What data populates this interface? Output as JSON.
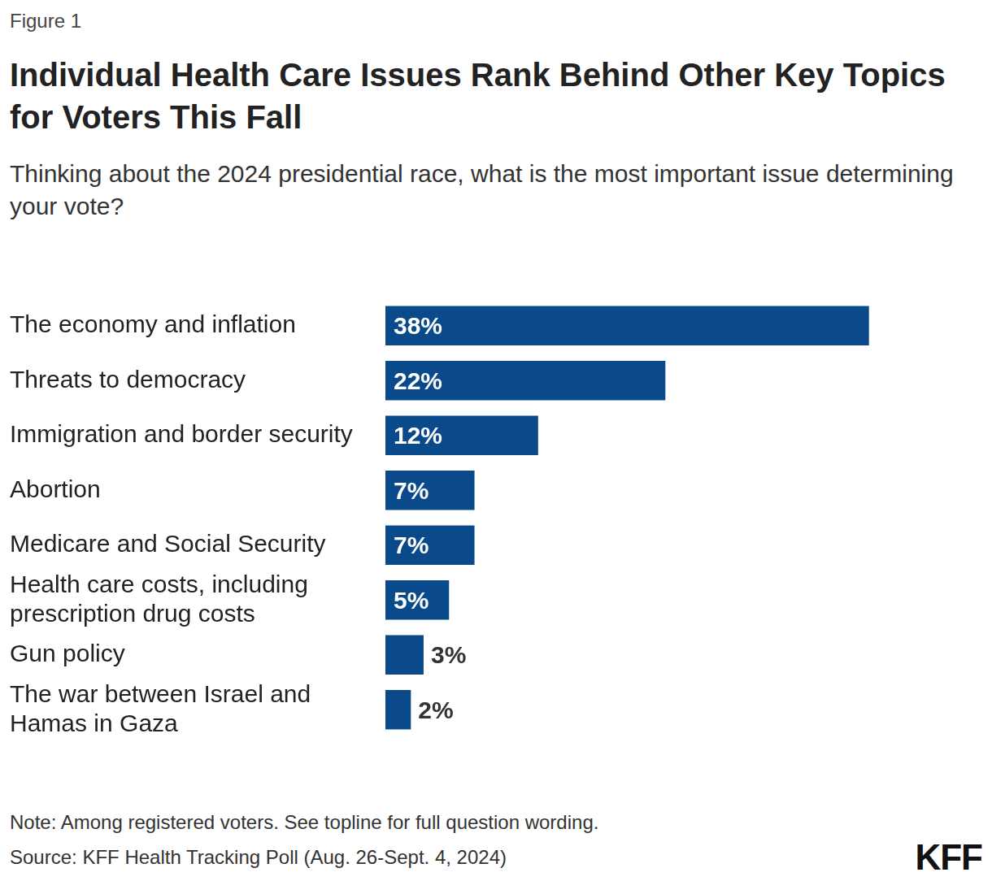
{
  "chart_data": {
    "type": "bar",
    "orientation": "horizontal",
    "figure_label": "Figure 1",
    "title": "Individual Health Care Issues Rank Behind Other Key Topics for Voters This Fall",
    "subtitle": "Thinking about the 2024 presidential race, what is the most important issue determining your vote?",
    "categories": [
      "The economy and inflation",
      "Threats to democracy",
      "Immigration and border security",
      "Abortion",
      "Medicare and Social Security",
      "Health care costs, including prescription drug costs",
      "Gun policy",
      "The war between Israel and Hamas in Gaza"
    ],
    "values": [
      38,
      22,
      12,
      7,
      7,
      5,
      3,
      2
    ],
    "value_labels": [
      "38%",
      "22%",
      "12%",
      "7%",
      "7%",
      "5%",
      "3%",
      "2%"
    ],
    "color": "#0a4a8a",
    "data_labels": true,
    "grid": false,
    "tick_labels": "y",
    "note": "Note: Among registered voters. See topline for full question wording.",
    "source": "Source: KFF Health Tracking Poll (Aug. 26-Sept. 4, 2024)",
    "logo": "KFF"
  }
}
